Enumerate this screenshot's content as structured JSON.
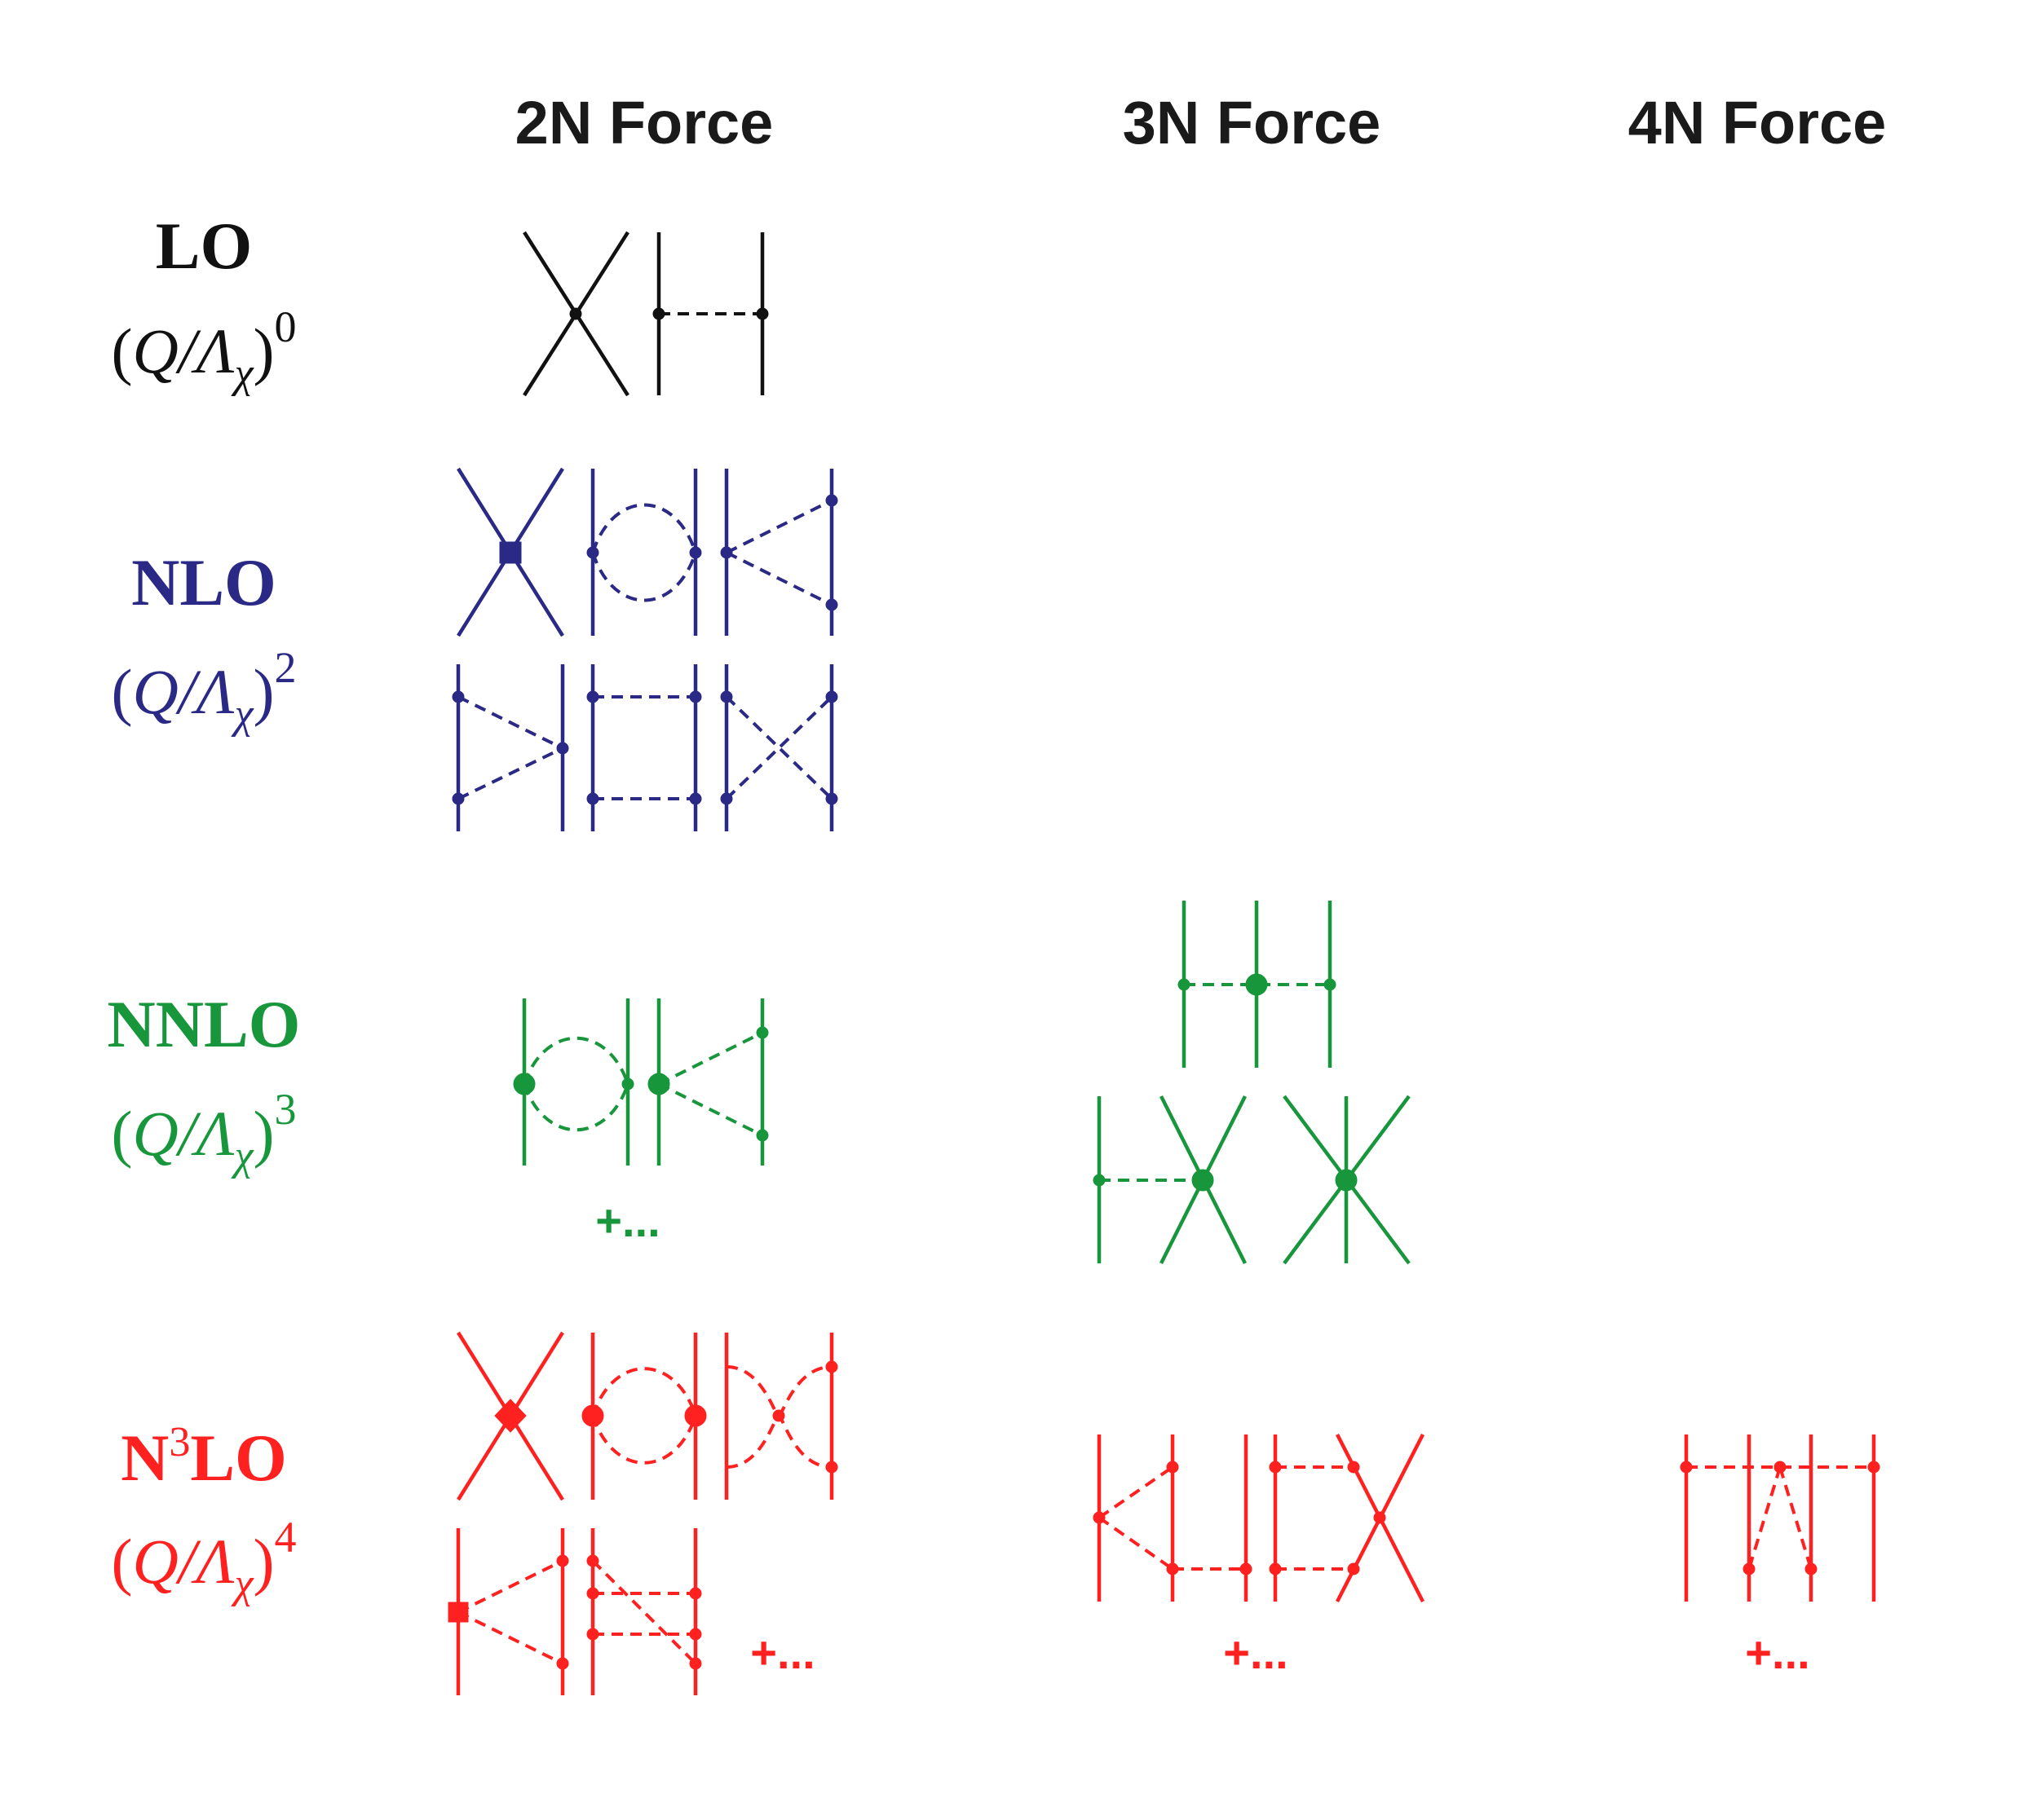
{
  "columns": [
    "2N Force",
    "3N Force",
    "4N Force"
  ],
  "rows": [
    {
      "order": "LO",
      "order_sup": "",
      "scale_base": "Q/Λ",
      "scale_sub": "χ",
      "scale_power": "0",
      "color": "#111111",
      "plus": {
        "2N": "",
        "3N": "",
        "4N": ""
      }
    },
    {
      "order": "NLO",
      "order_sup": "",
      "scale_base": "Q/Λ",
      "scale_sub": "χ",
      "scale_power": "2",
      "color": "#2a2a86",
      "plus": {
        "2N": "",
        "3N": "",
        "4N": ""
      }
    },
    {
      "order": "NNLO",
      "order_sup": "",
      "scale_base": "Q/Λ",
      "scale_sub": "χ",
      "scale_power": "3",
      "color": "#18963c",
      "plus": {
        "2N": "+...",
        "3N": "",
        "4N": ""
      }
    },
    {
      "order": "LO",
      "order_prefix": "N",
      "order_sup": "3",
      "scale_base": "Q/Λ",
      "scale_sub": "χ",
      "scale_power": "4",
      "color": "#ff2020",
      "plus": {
        "2N": "+...",
        "3N": "+...",
        "4N": "+..."
      }
    }
  ]
}
